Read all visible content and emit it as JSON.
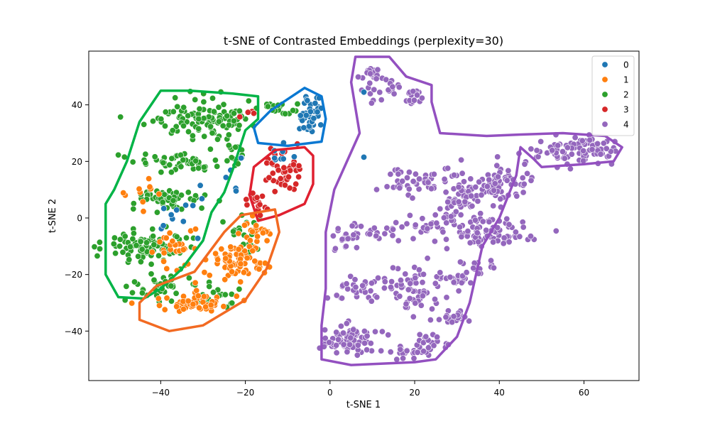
{
  "chart_data": {
    "type": "scatter",
    "title": "t-SNE of Contrasted Embeddings (perplexity=30)",
    "xlabel": "t-SNE 1",
    "ylabel": "t-SNE 2",
    "xlim": [
      -57,
      73
    ],
    "ylim": [
      -57.5,
      59
    ],
    "xticks": [
      -40,
      -20,
      0,
      20,
      40,
      60
    ],
    "yticks": [
      -40,
      -20,
      0,
      20,
      40
    ],
    "grid": false,
    "legend_position": "top-right",
    "colors": {
      "0": "#1f77b4",
      "1": "#ff7f0e",
      "2": "#2ca02c",
      "3": "#d62728",
      "4": "#9467bd"
    },
    "hull_colors": {
      "0": "#0a78d2",
      "1": "#f26a22",
      "2": "#00b447",
      "3": "#e02030",
      "4": "#9350c0"
    },
    "series": [
      {
        "name": "0",
        "clusters": [
          {
            "center": [
              -5,
              36
            ],
            "spread": [
              2,
              4
            ],
            "n": 40
          },
          {
            "center": [
              -12,
              22
            ],
            "spread": [
              2,
              3
            ],
            "n": 8
          },
          {
            "center": [
              -36,
              0
            ],
            "spread": [
              5,
              6
            ],
            "n": 10
          },
          {
            "center": [
              -25,
              20
            ],
            "spread": [
              4,
              10
            ],
            "n": 8
          }
        ],
        "points": [
          [
            8,
            44.5
          ],
          [
            8,
            21.5
          ]
        ]
      },
      {
        "name": "1",
        "clusters": [
          {
            "center": [
              -22,
              -15
            ],
            "spread": [
              5,
              5
            ],
            "n": 70
          },
          {
            "center": [
              -32,
              -30
            ],
            "spread": [
              6,
              3
            ],
            "n": 60
          },
          {
            "center": [
              -17,
              -5
            ],
            "spread": [
              3,
              4
            ],
            "n": 25
          },
          {
            "center": [
              -36,
              -10
            ],
            "spread": [
              4,
              6
            ],
            "n": 25
          },
          {
            "center": [
              -44,
              8
            ],
            "spread": [
              4,
              5
            ],
            "n": 10
          }
        ],
        "points": []
      },
      {
        "name": "2",
        "clusters": [
          {
            "center": [
              -30,
              35
            ],
            "spread": [
              8,
              5
            ],
            "n": 110
          },
          {
            "center": [
              -36,
              20
            ],
            "spread": [
              9,
              3
            ],
            "n": 50
          },
          {
            "center": [
              -38,
              7
            ],
            "spread": [
              6,
              3
            ],
            "n": 50
          },
          {
            "center": [
              -44,
              -10
            ],
            "spread": [
              7,
              4
            ],
            "n": 80
          },
          {
            "center": [
              -40,
              -24
            ],
            "spread": [
              6,
              4
            ],
            "n": 35
          },
          {
            "center": [
              -12,
              39
            ],
            "spread": [
              3,
              2
            ],
            "n": 20
          },
          {
            "center": [
              -20,
              -5
            ],
            "spread": [
              3,
              5
            ],
            "n": 20
          },
          {
            "center": [
              -27,
              -28
            ],
            "spread": [
              4,
              3
            ],
            "n": 20
          },
          {
            "center": [
              -23,
              23
            ],
            "spread": [
              2,
              4
            ],
            "n": 15
          }
        ],
        "points": []
      },
      {
        "name": "3",
        "clusters": [
          {
            "center": [
              -11,
              17
            ],
            "spread": [
              3,
              6
            ],
            "n": 45
          },
          {
            "center": [
              -17,
              5
            ],
            "spread": [
              2,
              3
            ],
            "n": 20
          },
          {
            "center": [
              -20,
              38
            ],
            "spread": [
              2,
              2
            ],
            "n": 3
          }
        ],
        "points": [
          [
            -18,
            37
          ],
          [
            -4,
            35
          ]
        ]
      },
      {
        "name": "4",
        "clusters": [
          {
            "center": [
              10,
              51
            ],
            "spread": [
              2,
              2
            ],
            "n": 20
          },
          {
            "center": [
              10,
              44
            ],
            "spread": [
              2,
              3
            ],
            "n": 10
          },
          {
            "center": [
              20,
              43
            ],
            "spread": [
              2,
              2
            ],
            "n": 15
          },
          {
            "center": [
              15,
              45
            ],
            "spread": [
              2,
              2
            ],
            "n": 8
          },
          {
            "center": [
              58,
              24
            ],
            "spread": [
              7,
              3
            ],
            "n": 90
          },
          {
            "center": [
              20,
              13
            ],
            "spread": [
              6,
              4
            ],
            "n": 45
          },
          {
            "center": [
              31,
              7
            ],
            "spread": [
              4,
              5
            ],
            "n": 60
          },
          {
            "center": [
              40,
              12
            ],
            "spread": [
              5,
              5
            ],
            "n": 60
          },
          {
            "center": [
              38,
              -5
            ],
            "spread": [
              7,
              4
            ],
            "n": 70
          },
          {
            "center": [
              10,
              -5
            ],
            "spread": [
              7,
              3
            ],
            "n": 30
          },
          {
            "center": [
              25,
              -2
            ],
            "spread": [
              5,
              4
            ],
            "n": 30
          },
          {
            "center": [
              30,
              -22
            ],
            "spread": [
              3,
              2
            ],
            "n": 25
          },
          {
            "center": [
              8,
              -25
            ],
            "spread": [
              6,
              3
            ],
            "n": 35
          },
          {
            "center": [
              20,
              -25
            ],
            "spread": [
              5,
              6
            ],
            "n": 60
          },
          {
            "center": [
              29,
              -35
            ],
            "spread": [
              3,
              2
            ],
            "n": 25
          },
          {
            "center": [
              5,
              -43
            ],
            "spread": [
              5,
              4
            ],
            "n": 80
          },
          {
            "center": [
              17,
              -48
            ],
            "spread": [
              4,
              2
            ],
            "n": 25
          },
          {
            "center": [
              24,
              -44
            ],
            "spread": [
              3,
              2
            ],
            "n": 20
          },
          {
            "center": [
              3,
              -8
            ],
            "spread": [
              2,
              3
            ],
            "n": 15
          },
          {
            "center": [
              35,
              -17
            ],
            "spread": [
              3,
              3
            ],
            "n": 15
          }
        ],
        "points": [
          [
            31,
            20.5
          ],
          [
            46,
            19
          ]
        ]
      }
    ],
    "hulls": [
      {
        "name": "0",
        "points": [
          [
            -14,
            38
          ],
          [
            -6,
            46
          ],
          [
            -2,
            43
          ],
          [
            -1,
            35
          ],
          [
            -2,
            27
          ],
          [
            -10,
            25.5
          ],
          [
            -17,
            26.5
          ],
          [
            -18,
            32
          ]
        ]
      },
      {
        "name": "3",
        "points": [
          [
            -18,
            18
          ],
          [
            -13,
            24
          ],
          [
            -6,
            25
          ],
          [
            -4,
            22
          ],
          [
            -4,
            12
          ],
          [
            -6,
            5
          ],
          [
            -12,
            1
          ],
          [
            -17,
            -1
          ],
          [
            -19,
            8
          ]
        ]
      },
      {
        "name": "2",
        "points": [
          [
            -40,
            45
          ],
          [
            -33,
            45
          ],
          [
            -23,
            44
          ],
          [
            -17,
            43
          ],
          [
            -17,
            35
          ],
          [
            -20,
            31
          ],
          [
            -23,
            17
          ],
          [
            -25,
            9
          ],
          [
            -28,
            2
          ],
          [
            -30,
            -8
          ],
          [
            -35,
            -18
          ],
          [
            -40,
            -25
          ],
          [
            -44,
            -28.5
          ],
          [
            -50,
            -28
          ],
          [
            -53,
            -20
          ],
          [
            -53,
            -8
          ],
          [
            -53,
            5
          ],
          [
            -51,
            10
          ],
          [
            -48,
            20
          ],
          [
            -45,
            34
          ]
        ]
      },
      {
        "name": "1",
        "points": [
          [
            -21,
            1
          ],
          [
            -13,
            3
          ],
          [
            -12,
            -5
          ],
          [
            -15,
            -18
          ],
          [
            -20,
            -29
          ],
          [
            -30,
            -38
          ],
          [
            -38,
            -40
          ],
          [
            -45,
            -36
          ],
          [
            -45,
            -30
          ],
          [
            -41,
            -24
          ],
          [
            -32,
            -19
          ],
          [
            -28,
            -11
          ],
          [
            -25,
            -5
          ]
        ]
      },
      {
        "name": "4",
        "points": [
          [
            6,
            57
          ],
          [
            14,
            57
          ],
          [
            18,
            50
          ],
          [
            24,
            47
          ],
          [
            24,
            41
          ],
          [
            26,
            30
          ],
          [
            37,
            29
          ],
          [
            45,
            29.5
          ],
          [
            55,
            30
          ],
          [
            65,
            29
          ],
          [
            69,
            25
          ],
          [
            67,
            20
          ],
          [
            60,
            19
          ],
          [
            50,
            18
          ],
          [
            48,
            21
          ],
          [
            45,
            25
          ],
          [
            44,
            15
          ],
          [
            40,
            0
          ],
          [
            36,
            -10
          ],
          [
            33,
            -30
          ],
          [
            30,
            -42
          ],
          [
            25,
            -50
          ],
          [
            20,
            -51
          ],
          [
            5,
            -52
          ],
          [
            -2,
            -50
          ],
          [
            -2,
            -38
          ],
          [
            -1,
            -25
          ],
          [
            -1,
            -5
          ],
          [
            1,
            10
          ],
          [
            7,
            30
          ],
          [
            5,
            48
          ]
        ]
      }
    ]
  }
}
